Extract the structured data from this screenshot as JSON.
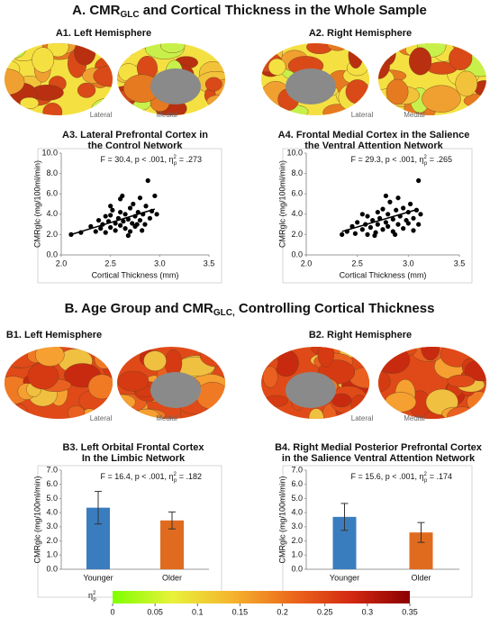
{
  "sections": [
    {
      "prefix": "A. CMR",
      "sub": "GLC",
      "rest": " and Cortical Thickness in the Whole Sample"
    },
    {
      "prefix": "B. Age Group and CMR",
      "sub": "GLC,",
      "rest": " Controlling Cortical Thickness"
    }
  ],
  "brain_panels": [
    {
      "title": "A1. Left Hemisphere",
      "lateral": "Lateral",
      "medial": "Medial"
    },
    {
      "title": "A2. Right Hemisphere",
      "lateral": "Lateral",
      "medial": "Medial"
    },
    {
      "title": "B1. Left Hemisphere",
      "lateral": "Lateral",
      "medial": "Medial"
    },
    {
      "title": "B2. Right Hemisphere",
      "lateral": "Lateral",
      "medial": "Medial"
    }
  ],
  "chart_data": [
    {
      "type": "scatter",
      "title": [
        "A3. Lateral Prefrontal Cortex in",
        "the Control Network"
      ],
      "annotation": [
        "F = 30.4, p < .001, η",
        "2",
        "p",
        " = .273"
      ],
      "xlabel": "Cortical Thickness (mm)",
      "ylabel": "CMRglc (mg/100ml/min)",
      "color": "#000000",
      "x": [
        2.1,
        2.2,
        2.3,
        2.35,
        2.38,
        2.4,
        2.42,
        2.45,
        2.45,
        2.48,
        2.5,
        2.5,
        2.52,
        2.55,
        2.55,
        2.58,
        2.6,
        2.6,
        2.62,
        2.63,
        2.65,
        2.65,
        2.68,
        2.7,
        2.7,
        2.72,
        2.73,
        2.75,
        2.75,
        2.78,
        2.8,
        2.8,
        2.82,
        2.83,
        2.85,
        2.86,
        2.88,
        2.9,
        2.92,
        2.95,
        2.97,
        2.6,
        2.5,
        2.68,
        2.77
      ],
      "values": [
        2.0,
        2.2,
        2.8,
        2.3,
        3.4,
        2.6,
        3.0,
        2.2,
        3.8,
        3.3,
        2.7,
        3.9,
        4.4,
        3.1,
        2.4,
        3.6,
        2.9,
        4.2,
        5.8,
        3.3,
        2.6,
        4.0,
        3.5,
        2.3,
        4.6,
        3.1,
        5.0,
        3.8,
        2.8,
        4.2,
        3.4,
        5.6,
        2.4,
        4.0,
        3.0,
        4.8,
        7.3,
        3.6,
        4.3,
        5.8,
        4.0,
        5.5,
        4.8,
        1.9,
        3.0
      ],
      "trend_x": [
        2.1,
        2.95
      ],
      "trend_y": [
        2.0,
        4.5
      ],
      "xlim": [
        2.0,
        3.5
      ],
      "xticks": [
        {
          "value": 2.0,
          "label": "2.0"
        },
        {
          "value": 2.5,
          "label": "2.5"
        },
        {
          "value": 3.0,
          "label": "3.0"
        },
        {
          "value": 3.5,
          "label": "3.5"
        }
      ],
      "ylim": [
        0,
        10
      ],
      "yticks": [
        {
          "value": 0,
          "label": "0.0"
        },
        {
          "value": 2,
          "label": "2.0"
        },
        {
          "value": 4,
          "label": "4.0"
        },
        {
          "value": 6,
          "label": "6.0"
        },
        {
          "value": 8,
          "label": "8.0"
        },
        {
          "value": 10,
          "label": "10.0"
        }
      ]
    },
    {
      "type": "scatter",
      "title": [
        "A4. Frontal Medial Cortex in the Salience",
        "the Ventral Attention Network"
      ],
      "annotation": [
        "F = 29.3, p < .001, η",
        "2",
        "p",
        " = .265"
      ],
      "xlabel": "Cortical Thickness (mm)",
      "ylabel": "CMRglc (mg/100ml/min)",
      "color": "#000000",
      "x": [
        2.35,
        2.4,
        2.45,
        2.48,
        2.5,
        2.55,
        2.58,
        2.6,
        2.6,
        2.63,
        2.65,
        2.68,
        2.7,
        2.7,
        2.72,
        2.75,
        2.75,
        2.78,
        2.8,
        2.8,
        2.82,
        2.85,
        2.85,
        2.88,
        2.9,
        2.9,
        2.92,
        2.95,
        2.95,
        2.98,
        3.0,
        3.02,
        3.05,
        3.05,
        3.08,
        3.1,
        3.1,
        3.12,
        2.55,
        2.67,
        2.87,
        2.78,
        3.0
      ],
      "values": [
        2.0,
        2.3,
        2.8,
        2.1,
        3.2,
        2.5,
        3.0,
        2.0,
        3.8,
        2.7,
        3.4,
        2.2,
        3.0,
        4.2,
        3.6,
        2.5,
        4.5,
        3.2,
        2.8,
        4.0,
        5.2,
        3.5,
        2.3,
        4.4,
        3.0,
        5.6,
        3.8,
        4.6,
        2.6,
        3.4,
        4.2,
        5.0,
        3.6,
        2.4,
        4.4,
        7.3,
        3.0,
        4.0,
        4.0,
        1.9,
        2.0,
        5.8,
        3.1
      ],
      "trend_x": [
        2.35,
        3.1
      ],
      "trend_y": [
        2.3,
        4.5
      ],
      "xlim": [
        2.0,
        3.5
      ],
      "xticks": [
        {
          "value": 2.0,
          "label": "2.0"
        },
        {
          "value": 2.5,
          "label": "2.5"
        },
        {
          "value": 3.0,
          "label": "3.0"
        },
        {
          "value": 3.5,
          "label": "3.5"
        }
      ],
      "ylim": [
        0,
        10
      ],
      "yticks": [
        {
          "value": 0,
          "label": "0.0"
        },
        {
          "value": 2,
          "label": "2.0"
        },
        {
          "value": 4,
          "label": "4.0"
        },
        {
          "value": 6,
          "label": "6.0"
        },
        {
          "value": 8,
          "label": "8.0"
        },
        {
          "value": 10,
          "label": "10.0"
        }
      ]
    },
    {
      "type": "bar",
      "title": [
        "B3. Left Orbital Frontal Cortex",
        "In the Limbic Network"
      ],
      "annotation": [
        "F = 16.4, p < .001, η",
        "2",
        "p",
        " = .182"
      ],
      "ylabel": "CMRglc (mg/100ml/min)",
      "categories": [
        "Younger",
        "Older"
      ],
      "values": [
        4.35,
        3.45
      ],
      "errors": [
        1.15,
        0.6
      ],
      "colors": [
        "#3a7dbf",
        "#e06b1f"
      ],
      "ylim": [
        0,
        7
      ],
      "yticks": [
        {
          "value": 0,
          "label": "0.0"
        },
        {
          "value": 1,
          "label": "1.0"
        },
        {
          "value": 2,
          "label": "2.0"
        },
        {
          "value": 3,
          "label": "3.0"
        },
        {
          "value": 4,
          "label": "4.0"
        },
        {
          "value": 5,
          "label": "5.0"
        },
        {
          "value": 6,
          "label": "6.0"
        },
        {
          "value": 7,
          "label": "7.0"
        }
      ]
    },
    {
      "type": "bar",
      "title": [
        "B4. Right Medial Posterior Prefrontal Cortex",
        "in the Salience Ventral Attention Network"
      ],
      "annotation": [
        "F = 15.6, p < .001, η",
        "2",
        "p",
        " = .174"
      ],
      "ylabel": "CMRglc (mg/100ml/min)",
      "categories": [
        "Younger",
        "Older"
      ],
      "values": [
        3.7,
        2.6
      ],
      "errors": [
        0.95,
        0.7
      ],
      "colors": [
        "#3a7dbf",
        "#e06b1f"
      ],
      "ylim": [
        0,
        7
      ],
      "yticks": [
        {
          "value": 0,
          "label": "0.0"
        },
        {
          "value": 1,
          "label": "1.0"
        },
        {
          "value": 2,
          "label": "2.0"
        },
        {
          "value": 3,
          "label": "3.0"
        },
        {
          "value": 4,
          "label": "4.0"
        },
        {
          "value": 5,
          "label": "5.0"
        },
        {
          "value": 6,
          "label": "6.0"
        },
        {
          "value": 7,
          "label": "7.0"
        }
      ]
    }
  ],
  "colorbar": {
    "label": "η",
    "label_sup": "2",
    "label_sub": "p",
    "range": [
      0,
      0.35
    ],
    "ticks": [
      0,
      0.05,
      0.1,
      0.15,
      0.2,
      0.25,
      0.3,
      0.35
    ],
    "colors": [
      "#7fff00",
      "#e8f23a",
      "#f5b52e",
      "#ec6a1c",
      "#d42a12",
      "#8b0000"
    ]
  }
}
